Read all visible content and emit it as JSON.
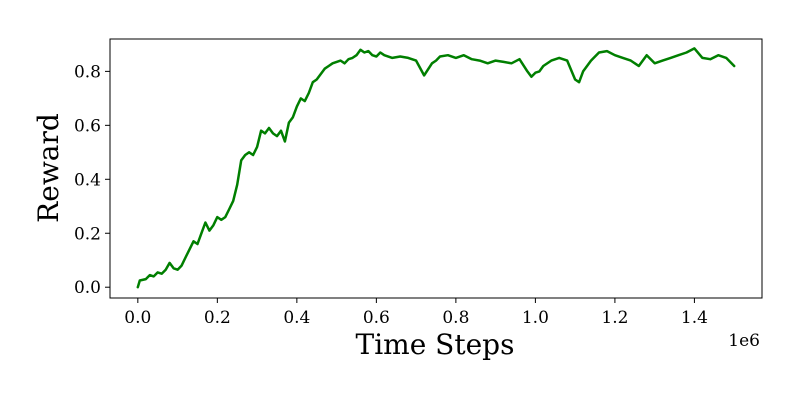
{
  "chart_data": {
    "type": "line",
    "title": "",
    "xlabel": "Time Steps",
    "ylabel": "Reward",
    "x_offset_label": "1e6",
    "xlim": [
      -0.07,
      1.57
    ],
    "ylim": [
      -0.04,
      0.92
    ],
    "xticks": [
      0.0,
      0.2,
      0.4,
      0.6,
      0.8,
      1.0,
      1.2,
      1.4
    ],
    "xtick_labels": [
      "0.0",
      "0.2",
      "0.4",
      "0.6",
      "0.8",
      "1.0",
      "1.2",
      "1.4"
    ],
    "yticks": [
      0.0,
      0.2,
      0.4,
      0.6,
      0.8
    ],
    "ytick_labels": [
      "0.0",
      "0.2",
      "0.4",
      "0.6",
      "0.8"
    ],
    "grid": false,
    "legend": "none",
    "series": [
      {
        "color": "#007f00",
        "x": [
          0.0,
          0.005,
          0.02,
          0.03,
          0.04,
          0.05,
          0.06,
          0.07,
          0.08,
          0.09,
          0.1,
          0.11,
          0.12,
          0.13,
          0.14,
          0.15,
          0.16,
          0.17,
          0.18,
          0.19,
          0.2,
          0.21,
          0.22,
          0.23,
          0.24,
          0.25,
          0.26,
          0.27,
          0.28,
          0.29,
          0.3,
          0.31,
          0.32,
          0.33,
          0.34,
          0.35,
          0.36,
          0.37,
          0.38,
          0.39,
          0.4,
          0.41,
          0.42,
          0.43,
          0.44,
          0.45,
          0.46,
          0.47,
          0.48,
          0.49,
          0.5,
          0.51,
          0.52,
          0.53,
          0.54,
          0.55,
          0.56,
          0.57,
          0.58,
          0.59,
          0.6,
          0.61,
          0.62,
          0.64,
          0.66,
          0.68,
          0.7,
          0.72,
          0.74,
          0.75,
          0.76,
          0.78,
          0.8,
          0.82,
          0.84,
          0.86,
          0.88,
          0.9,
          0.92,
          0.94,
          0.96,
          0.98,
          0.99,
          1.0,
          1.01,
          1.02,
          1.04,
          1.06,
          1.08,
          1.1,
          1.11,
          1.12,
          1.14,
          1.16,
          1.18,
          1.2,
          1.22,
          1.24,
          1.26,
          1.28,
          1.3,
          1.32,
          1.34,
          1.36,
          1.38,
          1.4,
          1.42,
          1.44,
          1.46,
          1.48,
          1.5
        ],
        "y": [
          0.0,
          0.025,
          0.03,
          0.045,
          0.04,
          0.055,
          0.05,
          0.065,
          0.09,
          0.07,
          0.065,
          0.08,
          0.11,
          0.14,
          0.17,
          0.16,
          0.2,
          0.24,
          0.21,
          0.23,
          0.26,
          0.25,
          0.26,
          0.29,
          0.32,
          0.38,
          0.47,
          0.49,
          0.5,
          0.49,
          0.52,
          0.58,
          0.57,
          0.59,
          0.57,
          0.56,
          0.58,
          0.54,
          0.61,
          0.63,
          0.67,
          0.7,
          0.69,
          0.72,
          0.76,
          0.77,
          0.79,
          0.81,
          0.82,
          0.83,
          0.835,
          0.84,
          0.83,
          0.845,
          0.85,
          0.86,
          0.88,
          0.87,
          0.875,
          0.86,
          0.855,
          0.87,
          0.86,
          0.85,
          0.855,
          0.85,
          0.84,
          0.785,
          0.83,
          0.84,
          0.855,
          0.86,
          0.85,
          0.86,
          0.845,
          0.84,
          0.83,
          0.84,
          0.835,
          0.83,
          0.845,
          0.8,
          0.78,
          0.795,
          0.8,
          0.82,
          0.84,
          0.85,
          0.84,
          0.77,
          0.76,
          0.8,
          0.84,
          0.87,
          0.875,
          0.86,
          0.85,
          0.84,
          0.82,
          0.86,
          0.83,
          0.84,
          0.85,
          0.86,
          0.87,
          0.885,
          0.85,
          0.845,
          0.86,
          0.85,
          0.82
        ]
      }
    ]
  }
}
